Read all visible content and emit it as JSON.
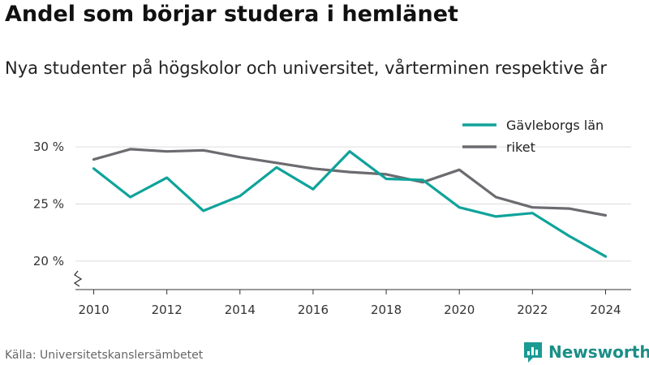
{
  "header": {
    "title": "Andel som börjar studera i hemlänet",
    "subtitle": "Nya studenter på högskolor och universitet, vårterminen respektive år"
  },
  "footer": {
    "source": "Källa: Universitetskanslersämbetet",
    "brand": "Newsworthy",
    "brand_icon": "bar-chart-speech-bubble-icon",
    "brand_color": "#1a9b93"
  },
  "chart_data": {
    "type": "line",
    "title": "Andel som börjar studera i hemlänet",
    "subtitle": "Nya studenter på högskolor och universitet, vårterminen respektive år",
    "x": [
      2010,
      2011,
      2012,
      2013,
      2014,
      2015,
      2016,
      2017,
      2018,
      2019,
      2020,
      2021,
      2022,
      2023,
      2024
    ],
    "series": [
      {
        "name": "Gävleborgs län",
        "color": "#0fa39a",
        "values": [
          28.1,
          25.6,
          27.3,
          24.4,
          25.7,
          28.2,
          26.3,
          29.6,
          27.2,
          27.1,
          24.7,
          23.9,
          24.2,
          22.2,
          20.4
        ]
      },
      {
        "name": "riket",
        "color": "#6b6b70",
        "values": [
          28.9,
          29.8,
          29.6,
          29.7,
          29.1,
          28.6,
          28.1,
          27.8,
          27.6,
          26.9,
          28.0,
          25.6,
          24.7,
          24.6,
          24.0
        ]
      }
    ],
    "x_ticks": [
      "2010",
      "2012",
      "2014",
      "2016",
      "2018",
      "2020",
      "2022",
      "2024"
    ],
    "y_ticks": [
      {
        "value": 20,
        "label": "20 %"
      },
      {
        "value": 25,
        "label": "25 %"
      },
      {
        "value": 30,
        "label": "30 %"
      }
    ],
    "ylim": [
      17.5,
      31.5
    ],
    "xlim": [
      2009.5,
      2024.7
    ],
    "grid": true,
    "y_axis_break": true,
    "legend_position": "top-right"
  }
}
